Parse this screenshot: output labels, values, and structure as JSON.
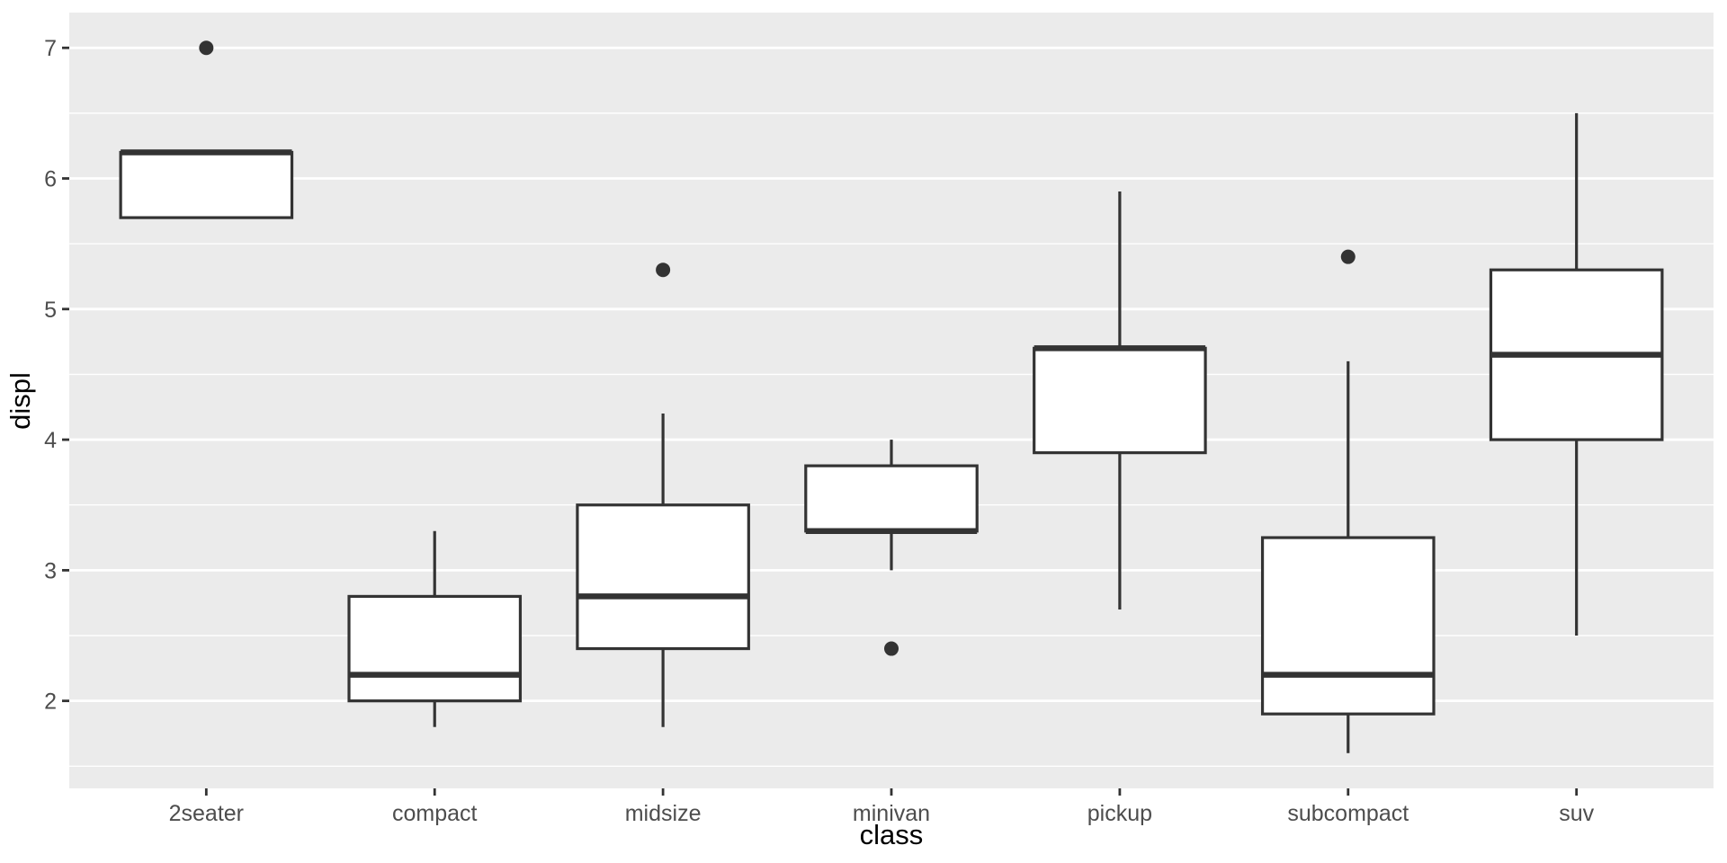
{
  "chart_data": {
    "type": "boxplot",
    "title": "",
    "xlabel": "class",
    "ylabel": "displ",
    "categories": [
      "2seater",
      "compact",
      "midsize",
      "minivan",
      "pickup",
      "subcompact",
      "suv"
    ],
    "series": [
      {
        "category": "2seater",
        "whisker_low": 5.7,
        "q1": 5.7,
        "median": 6.2,
        "q3": 6.2,
        "whisker_high": 6.2,
        "outliers": [
          7.0
        ]
      },
      {
        "category": "compact",
        "whisker_low": 1.8,
        "q1": 2.0,
        "median": 2.2,
        "q3": 2.8,
        "whisker_high": 3.3,
        "outliers": []
      },
      {
        "category": "midsize",
        "whisker_low": 1.8,
        "q1": 2.4,
        "median": 2.8,
        "q3": 3.5,
        "whisker_high": 4.2,
        "outliers": [
          5.3
        ]
      },
      {
        "category": "minivan",
        "whisker_low": 3.0,
        "q1": 3.3,
        "median": 3.3,
        "q3": 3.8,
        "whisker_high": 4.0,
        "outliers": [
          2.4
        ]
      },
      {
        "category": "pickup",
        "whisker_low": 2.7,
        "q1": 3.9,
        "median": 4.7,
        "q3": 4.7,
        "whisker_high": 5.9,
        "outliers": []
      },
      {
        "category": "subcompact",
        "whisker_low": 1.6,
        "q1": 1.9,
        "median": 2.2,
        "q3": 3.25,
        "whisker_high": 4.6,
        "outliers": [
          5.4
        ]
      },
      {
        "category": "suv",
        "whisker_low": 2.5,
        "q1": 4.0,
        "median": 4.65,
        "q3": 5.3,
        "whisker_high": 6.5,
        "outliers": []
      }
    ],
    "y_ticks": [
      2,
      3,
      4,
      5,
      6,
      7
    ],
    "y_minor_ticks": [
      1.5,
      2.5,
      3.5,
      4.5,
      5.5,
      6.5
    ],
    "ylim": [
      1.33,
      7.27
    ],
    "grid": "major+minor",
    "legend": "none"
  },
  "style": {
    "plot_bg": "#FFFFFF",
    "panel_bg": "#EBEBEB",
    "grid_color": "#FFFFFF",
    "box_stroke": "#333333",
    "box_fill": "#FFFFFF",
    "median_color": "#333333",
    "outlier_color": "#333333",
    "tick_color": "#333333",
    "axis_text_color": "#4D4D4D",
    "axis_title_color": "#000000"
  }
}
